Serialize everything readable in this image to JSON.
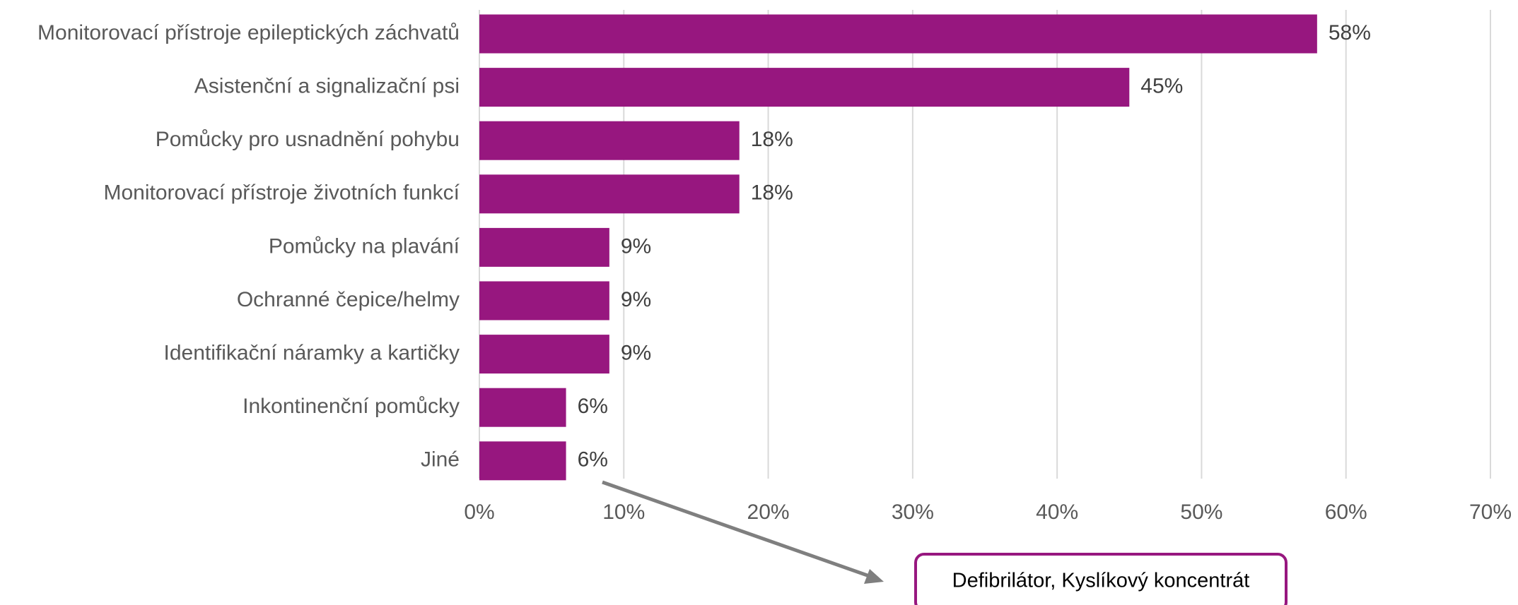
{
  "chart_data": {
    "type": "bar",
    "orientation": "horizontal",
    "categories": [
      "Monitorovací přístroje epileptických záchvatů",
      "Asistenční a signalizační psi",
      "Pomůcky pro usnadnění pohybu",
      "Monitorovací přístroje životních funkcí",
      "Pomůcky na plavání",
      "Ochranné čepice/helmy",
      "Identifikační náramky a kartičky",
      "Inkontinenční pomůcky",
      "Jiné"
    ],
    "values": [
      58,
      45,
      18,
      18,
      9,
      9,
      9,
      6,
      6
    ],
    "value_labels": [
      "58%",
      "45%",
      "18%",
      "18%",
      "9%",
      "9%",
      "9%",
      "6%",
      "6%"
    ],
    "color": "#97177f",
    "xlim": [
      0,
      70
    ],
    "xticks": [
      {
        "value": 0,
        "label": "0%"
      },
      {
        "value": 10,
        "label": "10%"
      },
      {
        "value": 20,
        "label": "20%"
      },
      {
        "value": 30,
        "label": "30%"
      },
      {
        "value": 40,
        "label": "40%"
      },
      {
        "value": 50,
        "label": "50%"
      },
      {
        "value": 60,
        "label": "60%"
      },
      {
        "value": 70,
        "label": "70%"
      }
    ],
    "grid": true,
    "annotation": "Defibrilátor, Kyslíkový koncentrát"
  }
}
